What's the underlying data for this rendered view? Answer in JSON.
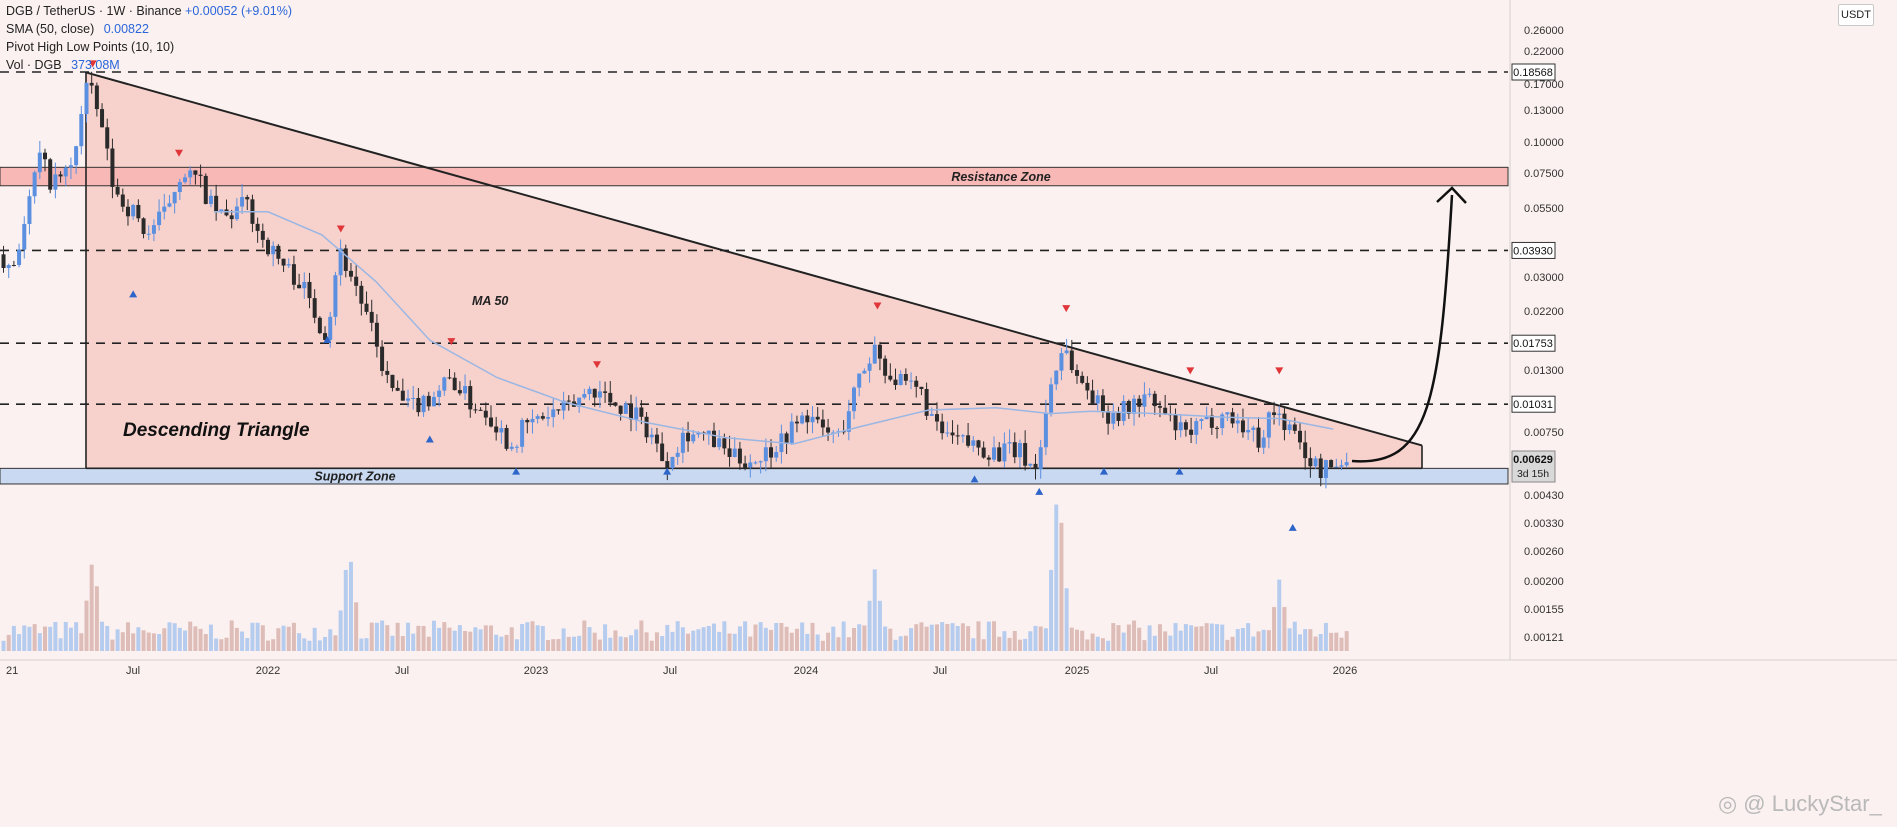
{
  "header": {
    "symbol_line": "DGB / TetherUS · 1W · Binance",
    "change": "+0.00052 (+9.01%)",
    "sma_label": "SMA (50, close)",
    "sma_value": "0.00822",
    "pivot_label": "Pivot High Low Points (10, 10)",
    "vol_label": "Vol · DGB",
    "vol_value": "373.08M"
  },
  "currency_badge": "USDT",
  "watermark": "◎ @ LuckyStar_",
  "colors": {
    "up_candle": "#5b8fe0",
    "down_candle": "#2a2a2a",
    "triangle_fill": "#f6c7c2",
    "resistance_fill": "#f7b8b6",
    "support_fill": "#c9d9f2",
    "ma_line": "#9ab6e3",
    "pivot_high": "#e0363a",
    "pivot_low": "#2e65c9"
  },
  "chart_data": {
    "type": "candlestick",
    "title": "DGB / TetherUS · 1W · Binance",
    "y_scale": "log",
    "x_tick_labels": [
      "21",
      "Jul",
      "2022",
      "Jul",
      "2023",
      "Jul",
      "2024",
      "Jul",
      "2025",
      "Jul",
      "2026"
    ],
    "y_tick_labels": [
      "0.26000",
      "0.22000",
      "0.17000",
      "0.13000",
      "0.10000",
      "0.07500",
      "0.05500",
      "0.03000",
      "0.02200",
      "0.01300",
      "0.00750",
      "0.00430",
      "0.00330",
      "0.00260",
      "0.00200",
      "0.00155",
      "0.00121"
    ],
    "price_labels": [
      {
        "value": 0.18568,
        "label": "0.18568"
      },
      {
        "value": 0.0393,
        "label": "0.03930"
      },
      {
        "value": 0.01753,
        "label": "0.01753"
      },
      {
        "value": 0.01031,
        "label": "0.01031"
      }
    ],
    "current_price": {
      "value": 0.00629,
      "label": "0.00629",
      "countdown": "3d 15h"
    },
    "annotations": [
      "Descending Triangle",
      "MA 50",
      "Resistance Zone",
      "Support Zone"
    ],
    "zones": {
      "resistance": [
        0.069,
        0.081
      ],
      "support": [
        0.00515,
        0.0059
      ]
    },
    "triangle": {
      "top_start": 0.185,
      "top_end": 0.0072,
      "base": 0.0059
    },
    "price_path": [
      [
        2021.0,
        0.038
      ],
      [
        2021.05,
        0.034
      ],
      [
        2021.1,
        0.05
      ],
      [
        2021.15,
        0.09
      ],
      [
        2021.2,
        0.07
      ],
      [
        2021.27,
        0.08
      ],
      [
        2021.33,
        0.17
      ],
      [
        2021.38,
        0.12
      ],
      [
        2021.43,
        0.065
      ],
      [
        2021.5,
        0.055
      ],
      [
        2021.55,
        0.045
      ],
      [
        2021.62,
        0.055
      ],
      [
        2021.68,
        0.08
      ],
      [
        2021.75,
        0.07
      ],
      [
        2021.8,
        0.055
      ],
      [
        2021.85,
        0.052
      ],
      [
        2021.92,
        0.06
      ],
      [
        2021.97,
        0.045
      ],
      [
        2022.05,
        0.035
      ],
      [
        2022.12,
        0.03
      ],
      [
        2022.18,
        0.022
      ],
      [
        2022.22,
        0.019
      ],
      [
        2022.26,
        0.04
      ],
      [
        2022.32,
        0.03
      ],
      [
        2022.38,
        0.02
      ],
      [
        2022.45,
        0.012
      ],
      [
        2022.52,
        0.01
      ],
      [
        2022.6,
        0.011
      ],
      [
        2022.68,
        0.013
      ],
      [
        2022.75,
        0.0105
      ],
      [
        2022.82,
        0.0095
      ],
      [
        2022.9,
        0.0072
      ],
      [
        2022.95,
        0.0085
      ],
      [
        2023.05,
        0.0095
      ],
      [
        2023.12,
        0.01
      ],
      [
        2023.2,
        0.012
      ],
      [
        2023.28,
        0.0105
      ],
      [
        2023.35,
        0.0098
      ],
      [
        2023.42,
        0.008
      ],
      [
        2023.47,
        0.0062
      ],
      [
        2023.55,
        0.0082
      ],
      [
        2023.65,
        0.0075
      ],
      [
        2023.72,
        0.0065
      ],
      [
        2023.8,
        0.0063
      ],
      [
        2023.88,
        0.0072
      ],
      [
        2023.95,
        0.0085
      ],
      [
        2024.0,
        0.0095
      ],
      [
        2024.05,
        0.0082
      ],
      [
        2024.12,
        0.0078
      ],
      [
        2024.18,
        0.012
      ],
      [
        2024.25,
        0.017
      ],
      [
        2024.3,
        0.0135
      ],
      [
        2024.36,
        0.012
      ],
      [
        2024.42,
        0.0115
      ],
      [
        2024.48,
        0.0082
      ],
      [
        2024.55,
        0.0075
      ],
      [
        2024.62,
        0.0072
      ],
      [
        2024.7,
        0.0068
      ],
      [
        2024.78,
        0.0069
      ],
      [
        2024.85,
        0.0058
      ],
      [
        2024.9,
        0.012
      ],
      [
        2024.95,
        0.0175
      ],
      [
        2025.0,
        0.013
      ],
      [
        2025.05,
        0.0115
      ],
      [
        2025.1,
        0.0095
      ],
      [
        2025.18,
        0.0098
      ],
      [
        2025.25,
        0.011
      ],
      [
        2025.32,
        0.0095
      ],
      [
        2025.4,
        0.0078
      ],
      [
        2025.48,
        0.0088
      ],
      [
        2025.55,
        0.0095
      ],
      [
        2025.62,
        0.0085
      ],
      [
        2025.68,
        0.0075
      ],
      [
        2025.72,
        0.0098
      ],
      [
        2025.78,
        0.0086
      ],
      [
        2025.85,
        0.0066
      ],
      [
        2025.9,
        0.0058
      ],
      [
        2025.95,
        0.006
      ],
      [
        2026.0,
        0.00629
      ]
    ],
    "ma50_path": [
      [
        2021.8,
        0.055
      ],
      [
        2022.0,
        0.055
      ],
      [
        2022.2,
        0.045
      ],
      [
        2022.4,
        0.03
      ],
      [
        2022.6,
        0.018
      ],
      [
        2022.85,
        0.013
      ],
      [
        2023.1,
        0.0105
      ],
      [
        2023.4,
        0.0088
      ],
      [
        2023.7,
        0.0077
      ],
      [
        2023.95,
        0.0073
      ],
      [
        2024.2,
        0.0085
      ],
      [
        2024.45,
        0.0098
      ],
      [
        2024.7,
        0.01
      ],
      [
        2024.9,
        0.0095
      ],
      [
        2025.05,
        0.0097
      ],
      [
        2025.3,
        0.0095
      ],
      [
        2025.55,
        0.0092
      ],
      [
        2025.75,
        0.0091
      ],
      [
        2025.95,
        0.0083
      ]
    ],
    "pivot_highs": [
      [
        2021.35,
        0.185
      ],
      [
        2021.67,
        0.085
      ],
      [
        2022.27,
        0.044
      ],
      [
        2022.68,
        0.0165
      ],
      [
        2023.22,
        0.0135
      ],
      [
        2024.26,
        0.0225
      ],
      [
        2024.96,
        0.022
      ],
      [
        2025.42,
        0.0128
      ],
      [
        2025.75,
        0.0128
      ]
    ],
    "pivot_lows": [
      [
        2021.5,
        0.029
      ],
      [
        2022.22,
        0.0195
      ],
      [
        2022.6,
        0.0082
      ],
      [
        2022.92,
        0.0062
      ],
      [
        2023.48,
        0.0062
      ],
      [
        2024.62,
        0.0058
      ],
      [
        2024.86,
        0.0052
      ],
      [
        2025.1,
        0.0062
      ],
      [
        2025.38,
        0.0062
      ],
      [
        2025.8,
        0.0038
      ]
    ],
    "volume_spikes": [
      [
        2021.35,
        0.55
      ],
      [
        2022.3,
        0.62
      ],
      [
        2024.25,
        0.48
      ],
      [
        2024.93,
        1.0
      ],
      [
        2025.75,
        0.42
      ]
    ]
  }
}
